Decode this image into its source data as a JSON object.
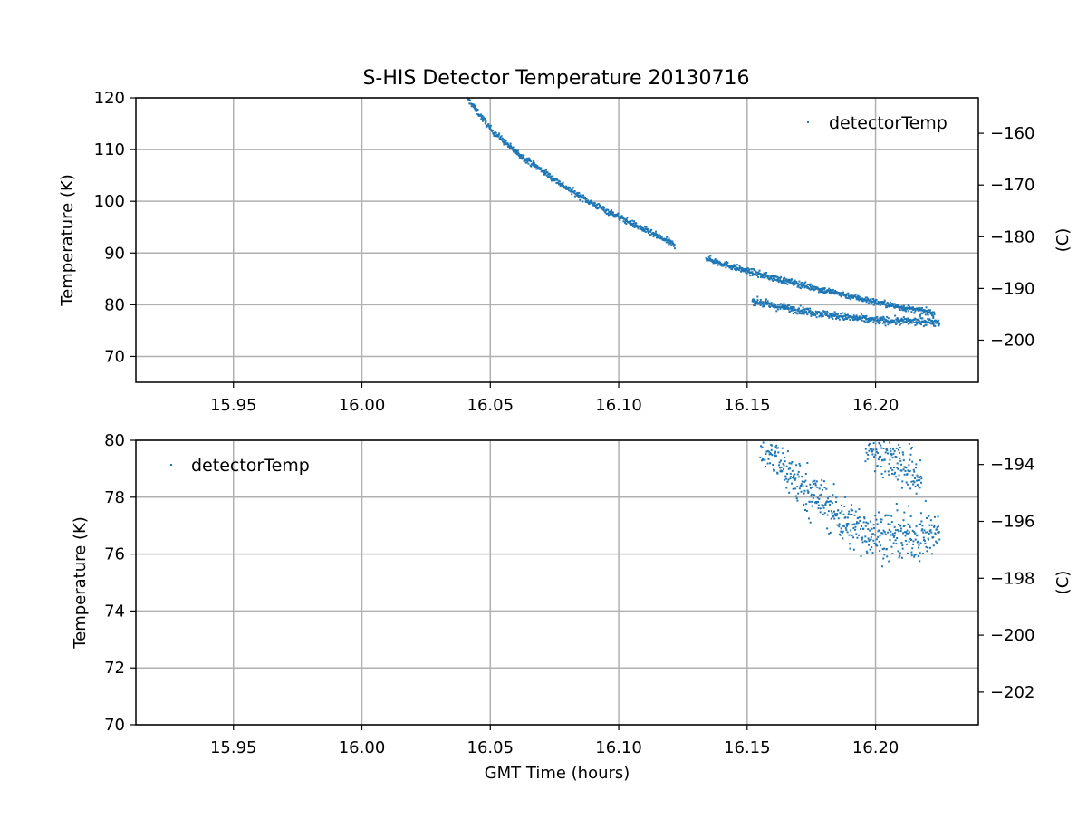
{
  "figure": {
    "title": "S-HIS Detector Temperature 20130716",
    "series_color": "#1f77b4",
    "grid_color": "#b0b0b0"
  },
  "chart_data": [
    {
      "type": "scatter",
      "title": "S-HIS Detector Temperature 20130716",
      "xlabel": "",
      "ylabel": "Temperature (K)",
      "ylabel_right": "(C)",
      "xlim": [
        15.912,
        16.24
      ],
      "ylim": [
        65,
        120
      ],
      "ylim_right": [
        -208.15,
        -153.15
      ],
      "xticks": [
        15.95,
        16.0,
        16.05,
        16.1,
        16.15,
        16.2
      ],
      "xtick_labels": [
        "15.95",
        "16.00",
        "16.05",
        "16.10",
        "16.15",
        "16.20"
      ],
      "yticks": [
        70,
        80,
        90,
        100,
        110,
        120
      ],
      "ytick_labels": [
        "70",
        "80",
        "90",
        "100",
        "110",
        "120"
      ],
      "yticks_right": [
        -200,
        -190,
        -180,
        -170,
        -160
      ],
      "ytick_right_labels": [
        "−200",
        "−190",
        "−180",
        "−170",
        "−160"
      ],
      "grid": true,
      "legend": {
        "position": "top-right",
        "entries": [
          "detectorTemp"
        ]
      },
      "series": [
        {
          "name": "detectorTemp",
          "segments": [
            {
              "x_start": 16.041,
              "x_end": 16.122,
              "anchors": [
                [
                  16.041,
                  120.0
                ],
                [
                  16.05,
                  114.0
                ],
                [
                  16.06,
                  109.5
                ],
                [
                  16.07,
                  106.0
                ],
                [
                  16.08,
                  102.5
                ],
                [
                  16.09,
                  99.5
                ],
                [
                  16.1,
                  97.0
                ],
                [
                  16.11,
                  94.5
                ],
                [
                  16.122,
                  91.5
                ]
              ],
              "spread": 0.5
            },
            {
              "x_start": 16.134,
              "x_end": 16.223,
              "anchors": [
                [
                  16.134,
                  89.0
                ],
                [
                  16.14,
                  88.0
                ],
                [
                  16.15,
                  86.5
                ],
                [
                  16.16,
                  85.2
                ],
                [
                  16.17,
                  84.0
                ],
                [
                  16.18,
                  82.8
                ],
                [
                  16.19,
                  81.7
                ],
                [
                  16.2,
                  80.5
                ],
                [
                  16.21,
                  79.5
                ],
                [
                  16.223,
                  78.3
                ]
              ],
              "spread": 0.5
            },
            {
              "x_start": 16.152,
              "x_end": 16.225,
              "anchors": [
                [
                  16.152,
                  80.8
                ],
                [
                  16.16,
                  79.8
                ],
                [
                  16.17,
                  79.0
                ],
                [
                  16.18,
                  78.2
                ],
                [
                  16.19,
                  77.5
                ],
                [
                  16.2,
                  77.0
                ],
                [
                  16.21,
                  76.8
                ],
                [
                  16.225,
                  76.7
                ]
              ],
              "spread": 0.6
            }
          ]
        }
      ]
    },
    {
      "type": "scatter",
      "title": "",
      "xlabel": "GMT Time (hours)",
      "ylabel": "Temperature (K)",
      "ylabel_right": "(C)",
      "xlim": [
        15.912,
        16.24
      ],
      "ylim": [
        70,
        80
      ],
      "ylim_right": [
        -203.15,
        -193.15
      ],
      "xticks": [
        15.95,
        16.0,
        16.05,
        16.1,
        16.15,
        16.2
      ],
      "xtick_labels": [
        "15.95",
        "16.00",
        "16.05",
        "16.10",
        "16.15",
        "16.20"
      ],
      "yticks": [
        70,
        72,
        74,
        76,
        78,
        80
      ],
      "ytick_labels": [
        "70",
        "72",
        "74",
        "76",
        "78",
        "80"
      ],
      "yticks_right": [
        -202,
        -200,
        -198,
        -196,
        -194
      ],
      "ytick_right_labels": [
        "−202",
        "−200",
        "−198",
        "−196",
        "−194"
      ],
      "grid": true,
      "legend": {
        "position": "top-left",
        "entries": [
          "detectorTemp"
        ]
      },
      "series": [
        {
          "name": "detectorTemp",
          "segments": [
            {
              "x_start": 16.155,
              "x_end": 16.225,
              "anchors": [
                [
                  16.155,
                  80.0
                ],
                [
                  16.16,
                  79.5
                ],
                [
                  16.17,
                  78.5
                ],
                [
                  16.18,
                  77.8
                ],
                [
                  16.19,
                  77.0
                ],
                [
                  16.2,
                  76.7
                ],
                [
                  16.21,
                  76.6
                ],
                [
                  16.225,
                  76.7
                ]
              ],
              "spread": 0.7
            },
            {
              "x_start": 16.196,
              "x_end": 16.218,
              "anchors": [
                [
                  16.196,
                  80.0
                ],
                [
                  16.205,
                  79.5
                ],
                [
                  16.218,
                  78.6
                ]
              ],
              "spread": 0.7
            }
          ]
        }
      ]
    }
  ]
}
